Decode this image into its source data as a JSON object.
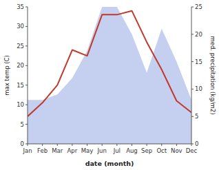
{
  "chart_data": {
    "type": "line",
    "categories": [
      "Jan",
      "Feb",
      "Mar",
      "Apr",
      "May",
      "Jun",
      "Jul",
      "Aug",
      "Sep",
      "Oct",
      "Nov",
      "Dec"
    ],
    "series": [
      {
        "type": "area",
        "axis": "y2",
        "color": "#c5cff0",
        "values": [
          8,
          8,
          9,
          12,
          17,
          25,
          25,
          20,
          13,
          21,
          15,
          8
        ]
      },
      {
        "type": "line",
        "color": "#c0392b",
        "values": [
          7,
          10.5,
          15,
          24,
          22.5,
          33,
          33,
          34,
          26,
          19,
          11,
          8
        ]
      }
    ],
    "xlabel": "date (month)",
    "ylabel": "max temp (C)",
    "y2label": "med. precipitation (kg/m2)",
    "ylim": [
      0,
      35
    ],
    "yticks": [
      0,
      5,
      10,
      15,
      20,
      25,
      30,
      35
    ],
    "y2lim": [
      0,
      25
    ],
    "y2ticks": [
      0,
      5,
      10,
      15,
      20,
      25
    ],
    "grid": false
  }
}
